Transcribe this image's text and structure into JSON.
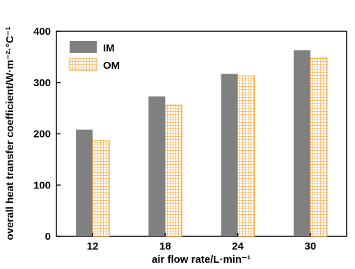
{
  "chart_data": {
    "type": "bar",
    "categories": [
      "12",
      "18",
      "24",
      "30"
    ],
    "series": [
      {
        "name": "IM",
        "values": [
          208,
          273,
          317,
          363
        ],
        "color": "#808080"
      },
      {
        "name": "OM",
        "values": [
          187,
          256,
          313,
          348
        ],
        "color": "#f5a238",
        "pattern": "grid"
      }
    ],
    "xlabel": "air flow rate/L·min⁻¹",
    "ylabel": "overall heat transfer coefficient/W·m⁻²·°C⁻¹",
    "ylim": [
      0,
      400
    ],
    "yticks": [
      "0",
      "100",
      "200",
      "300",
      "400"
    ],
    "grid": false,
    "legend_position": "top-left"
  }
}
